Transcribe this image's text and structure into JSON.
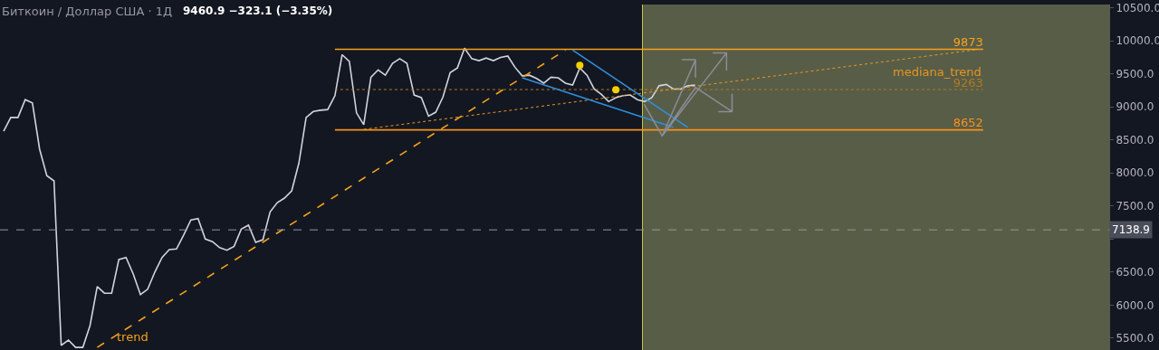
{
  "chart_data": {
    "type": "line",
    "title": "Биткоин / Доллар США · 1Д",
    "subtitle": "9460.9 −323.1 (−3.35%)",
    "categories": [
      null,
      null,
      null,
      null,
      null,
      null,
      null,
      null,
      null,
      null,
      null,
      null,
      null,
      null,
      null,
      null,
      null,
      null,
      null,
      null,
      null,
      null,
      null,
      null,
      null,
      null,
      null,
      null,
      null,
      null,
      null,
      null,
      null,
      null,
      null,
      null,
      null,
      null,
      null,
      null,
      null,
      null,
      null,
      null,
      null,
      null,
      null,
      null,
      null,
      null,
      null,
      null,
      null,
      null,
      null,
      null,
      null,
      null,
      null,
      null,
      null,
      null,
      null,
      null,
      null,
      null,
      null,
      null,
      null,
      null,
      null,
      null,
      null,
      null,
      null,
      null,
      null,
      null,
      null,
      null,
      null,
      null,
      null,
      null,
      null,
      null,
      null,
      null,
      null,
      null,
      null,
      null,
      null,
      null,
      null,
      null,
      null,
      null,
      null,
      null,
      null,
      null,
      null,
      null,
      null,
      null,
      null,
      null,
      null,
      null,
      null,
      null,
      null,
      null,
      null,
      null,
      null,
      null,
      null,
      null,
      null,
      null,
      null,
      null,
      null,
      null,
      null,
      null,
      null,
      null,
      null,
      null,
      null,
      null,
      null,
      null,
      null,
      null,
      null,
      null,
      null,
      null,
      null,
      null,
      null,
      null,
      null,
      null,
      null,
      null,
      null,
      null,
      null,
      null
    ],
    "series": [
      {
        "color": "#d1d4dc",
        "line_style": "solid",
        "values": [
          8630,
          8840,
          8840,
          9110,
          9060,
          8360,
          7960,
          7880,
          5390,
          5470,
          5360,
          5360,
          5690,
          6280,
          6180,
          6180,
          6690,
          6720,
          6470,
          6160,
          6240,
          6500,
          6720,
          6840,
          6850,
          7060,
          7290,
          7310,
          7000,
          6960,
          6870,
          6830,
          6890,
          7150,
          7210,
          6950,
          6990,
          7410,
          7550,
          7620,
          7730,
          8150,
          8840,
          8930,
          8950,
          8960,
          9170,
          9790,
          9690,
          8910,
          8730,
          9450,
          9560,
          9480,
          9660,
          9730,
          9660,
          9180,
          9140,
          8860,
          8920,
          9150,
          9520,
          9590,
          9890,
          9730,
          9700,
          9740,
          9700,
          9750,
          9770,
          9600,
          9470,
          9480,
          9430,
          9360,
          9450,
          9440,
          9360,
          9330,
          9590,
          9480,
          9270,
          9190,
          9080,
          9140,
          9170,
          9180,
          9110,
          9080,
          9140,
          9320,
          9340,
          9270,
          9270,
          9320,
          9330,
          null,
          null,
          null,
          null,
          null,
          null,
          null,
          null,
          null,
          null,
          null,
          null,
          null,
          null,
          null,
          null,
          null,
          null,
          null,
          null,
          null,
          null,
          null,
          null,
          null,
          null,
          null,
          null,
          null,
          null,
          null,
          null,
          null,
          null,
          null,
          null,
          null,
          null,
          null,
          null,
          null,
          null,
          null,
          null,
          null,
          null,
          null,
          null,
          null,
          null,
          null,
          null,
          null,
          null,
          null,
          null,
          null
        ]
      },
      {
        "color": "#f7a21b",
        "line_style": "solid",
        "values": [
          null,
          null,
          null,
          null,
          null,
          null,
          null,
          null,
          null,
          null,
          null,
          null,
          null,
          null,
          null,
          null,
          null,
          null,
          null,
          null,
          null,
          null,
          null,
          null,
          null,
          null,
          null,
          null,
          null,
          null,
          null,
          null,
          null,
          null,
          null,
          null,
          null,
          null,
          null,
          null,
          null,
          null,
          null,
          null,
          null,
          null,
          9873,
          null,
          null,
          null,
          null,
          null,
          null,
          null,
          null,
          null,
          null,
          null,
          null,
          null,
          null,
          null,
          null,
          null,
          null,
          null,
          null,
          null,
          null,
          null,
          null,
          null,
          null,
          null,
          null,
          null,
          null,
          null,
          null,
          null,
          null,
          null,
          null,
          null,
          null,
          null,
          null,
          null,
          null,
          null,
          null,
          null,
          null,
          null,
          null,
          null,
          null,
          null,
          null,
          null,
          null,
          null,
          null,
          null,
          null,
          null,
          null,
          null,
          null,
          null,
          null,
          null,
          null,
          null,
          null,
          null,
          null,
          null,
          null,
          null,
          null,
          null,
          null,
          null,
          null,
          null,
          null,
          null,
          null,
          null,
          null,
          null,
          null,
          null,
          null,
          null,
          9873,
          null,
          null,
          null,
          null,
          null,
          null,
          null,
          null,
          null,
          null,
          null,
          null,
          null,
          null,
          null,
          null,
          null
        ],
        "value_labels": [
          null,
          null,
          null,
          null,
          null,
          null,
          null,
          null,
          null,
          null,
          null,
          null,
          null,
          null,
          null,
          null,
          null,
          null,
          null,
          null,
          null,
          null,
          null,
          null,
          null,
          null,
          null,
          null,
          null,
          null,
          null,
          null,
          null,
          null,
          null,
          null,
          null,
          null,
          null,
          null,
          null,
          null,
          null,
          null,
          null,
          null,
          null,
          null,
          null,
          null,
          null,
          null,
          null,
          null,
          null,
          null,
          null,
          null,
          null,
          null,
          null,
          null,
          null,
          null,
          null,
          null,
          null,
          null,
          null,
          null,
          null,
          null,
          null,
          null,
          null,
          null,
          null,
          null,
          null,
          null,
          null,
          null,
          null,
          null,
          null,
          null,
          null,
          null,
          null,
          null,
          null,
          null,
          null,
          null,
          null,
          null,
          null,
          null,
          null,
          null,
          null,
          null,
          null,
          null,
          null,
          null,
          null,
          null,
          null,
          null,
          null,
          null,
          null,
          null,
          null,
          null,
          null,
          null,
          null,
          null,
          null,
          null,
          null,
          null,
          null,
          null,
          null,
          null,
          null,
          null,
          null,
          null,
          null,
          null,
          null,
          null,
          "9873",
          null,
          null,
          null,
          null,
          null,
          null,
          null,
          null,
          null,
          null,
          null,
          null,
          null,
          null,
          null,
          null,
          null
        ]
      },
      {
        "color": "#b5791c",
        "line_style": "dotted",
        "values": [
          null,
          null,
          null,
          null,
          null,
          null,
          null,
          null,
          null,
          null,
          null,
          null,
          null,
          null,
          null,
          null,
          null,
          null,
          null,
          null,
          null,
          null,
          null,
          null,
          null,
          null,
          null,
          null,
          null,
          null,
          null,
          null,
          null,
          null,
          null,
          null,
          null,
          null,
          null,
          null,
          null,
          null,
          null,
          null,
          null,
          null,
          9263,
          null,
          null,
          null,
          null,
          null,
          null,
          null,
          null,
          null,
          null,
          null,
          null,
          null,
          null,
          null,
          null,
          null,
          null,
          null,
          null,
          null,
          null,
          null,
          null,
          null,
          null,
          null,
          null,
          null,
          null,
          null,
          null,
          null,
          null,
          null,
          null,
          null,
          null,
          null,
          null,
          null,
          null,
          null,
          null,
          null,
          null,
          null,
          null,
          null,
          null,
          null,
          null,
          null,
          null,
          null,
          null,
          null,
          null,
          null,
          null,
          null,
          null,
          null,
          null,
          null,
          null,
          null,
          null,
          null,
          null,
          null,
          null,
          null,
          null,
          null,
          null,
          null,
          null,
          null,
          null,
          null,
          null,
          null,
          null,
          null,
          null,
          null,
          null,
          null,
          9263,
          null,
          null,
          null,
          null,
          null,
          null,
          null,
          null,
          null,
          null,
          null,
          null,
          null,
          null,
          null,
          null,
          null
        ],
        "value_labels": [
          null,
          null,
          null,
          null,
          null,
          null,
          null,
          null,
          null,
          null,
          null,
          null,
          null,
          null,
          null,
          null,
          null,
          null,
          null,
          null,
          null,
          null,
          null,
          null,
          null,
          null,
          null,
          null,
          null,
          null,
          null,
          null,
          null,
          null,
          null,
          null,
          null,
          null,
          null,
          null,
          null,
          null,
          null,
          null,
          null,
          null,
          null,
          null,
          null,
          null,
          null,
          null,
          null,
          null,
          null,
          null,
          null,
          null,
          null,
          null,
          null,
          null,
          null,
          null,
          null,
          null,
          null,
          null,
          null,
          null,
          null,
          null,
          null,
          null,
          null,
          null,
          null,
          null,
          null,
          null,
          null,
          null,
          null,
          null,
          null,
          null,
          null,
          null,
          null,
          null,
          null,
          null,
          null,
          null,
          null,
          null,
          null,
          null,
          null,
          null,
          null,
          null,
          null,
          null,
          null,
          null,
          null,
          null,
          null,
          null,
          null,
          null,
          null,
          null,
          null,
          null,
          null,
          null,
          null,
          null,
          null,
          null,
          null,
          null,
          null,
          null,
          null,
          null,
          null,
          null,
          null,
          null,
          null,
          null,
          null,
          null,
          "9263",
          null,
          null,
          null,
          null,
          null,
          null,
          null,
          null,
          null,
          null,
          null,
          null,
          null,
          null,
          null,
          null,
          null
        ]
      },
      {
        "color": "#f7931a",
        "line_style": "solid",
        "values": [
          null,
          null,
          null,
          null,
          null,
          null,
          null,
          null,
          null,
          null,
          null,
          null,
          null,
          null,
          null,
          null,
          null,
          null,
          null,
          null,
          null,
          null,
          null,
          null,
          null,
          null,
          null,
          null,
          null,
          null,
          null,
          null,
          null,
          null,
          null,
          null,
          null,
          null,
          null,
          null,
          null,
          null,
          null,
          null,
          null,
          null,
          8652,
          null,
          null,
          null,
          null,
          null,
          null,
          null,
          null,
          null,
          null,
          null,
          null,
          null,
          null,
          null,
          null,
          null,
          null,
          null,
          null,
          null,
          null,
          null,
          null,
          null,
          null,
          null,
          null,
          null,
          null,
          null,
          null,
          null,
          null,
          null,
          null,
          null,
          null,
          null,
          null,
          null,
          null,
          null,
          null,
          null,
          null,
          null,
          null,
          null,
          null,
          null,
          null,
          null,
          null,
          null,
          null,
          null,
          null,
          null,
          null,
          null,
          null,
          null,
          null,
          null,
          null,
          null,
          null,
          null,
          null,
          null,
          null,
          null,
          null,
          null,
          null,
          null,
          null,
          null,
          null,
          null,
          null,
          null,
          null,
          null,
          null,
          null,
          null,
          null,
          8652,
          null,
          null,
          null,
          null,
          null,
          null,
          null,
          null,
          null,
          null,
          null,
          null,
          null,
          null,
          null,
          null,
          null
        ],
        "value_labels": [
          null,
          null,
          null,
          null,
          null,
          null,
          null,
          null,
          null,
          null,
          null,
          null,
          null,
          null,
          null,
          null,
          null,
          null,
          null,
          null,
          null,
          null,
          null,
          null,
          null,
          null,
          null,
          null,
          null,
          null,
          null,
          null,
          null,
          null,
          null,
          null,
          null,
          null,
          null,
          null,
          null,
          null,
          null,
          null,
          null,
          null,
          null,
          null,
          null,
          null,
          null,
          null,
          null,
          null,
          null,
          null,
          null,
          null,
          null,
          null,
          null,
          null,
          null,
          null,
          null,
          null,
          null,
          null,
          null,
          null,
          null,
          null,
          null,
          null,
          null,
          null,
          null,
          null,
          null,
          null,
          null,
          null,
          null,
          null,
          null,
          null,
          null,
          null,
          null,
          null,
          null,
          null,
          null,
          null,
          null,
          null,
          null,
          null,
          null,
          null,
          null,
          null,
          null,
          null,
          null,
          null,
          null,
          null,
          null,
          null,
          null,
          null,
          null,
          null,
          null,
          null,
          null,
          null,
          null,
          null,
          null,
          null,
          null,
          null,
          null,
          null,
          null,
          null,
          null,
          null,
          null,
          null,
          null,
          null,
          null,
          null,
          "8652",
          null,
          null,
          null,
          null,
          null,
          null,
          null,
          null,
          null,
          null,
          null,
          null,
          null,
          null,
          null,
          null,
          null
        ]
      },
      {
        "name": "trend",
        "color": "#f7a21b",
        "line_style": "dashed",
        "values": [
          null,
          null,
          null,
          null,
          null,
          null,
          null,
          null,
          null,
          null,
          null,
          null,
          null,
          5360,
          null,
          null,
          null,
          null,
          null,
          null,
          null,
          null,
          null,
          null,
          null,
          null,
          null,
          null,
          null,
          null,
          null,
          null,
          null,
          null,
          null,
          null,
          null,
          null,
          null,
          null,
          null,
          null,
          null,
          null,
          null,
          null,
          null,
          null,
          null,
          null,
          null,
          null,
          null,
          null,
          null,
          null,
          null,
          null,
          null,
          null,
          null,
          null,
          null,
          null,
          null,
          null,
          null,
          null,
          null,
          null,
          null,
          null,
          null,
          null,
          null,
          null,
          null,
          null,
          9860,
          null,
          null,
          null,
          null,
          null,
          null,
          null,
          null,
          null,
          null,
          null,
          null,
          null,
          null,
          null,
          null,
          null,
          null,
          null,
          null,
          null,
          null,
          null,
          null,
          null,
          null,
          null,
          null,
          null,
          null,
          null,
          null,
          null,
          null,
          null,
          null,
          null,
          null,
          null,
          null,
          null,
          null,
          null,
          null,
          null,
          null,
          null,
          null,
          null,
          null,
          null,
          null,
          null,
          null,
          null,
          null,
          null,
          null,
          null,
          null,
          null,
          null,
          null,
          null,
          null,
          null,
          null,
          null,
          null,
          null,
          null,
          null,
          null,
          null,
          null
        ]
      },
      {
        "name": "mediana_trend",
        "color": "#e8961e",
        "line_style": "dotted",
        "values": [
          null,
          null,
          null,
          null,
          null,
          null,
          null,
          null,
          null,
          null,
          null,
          null,
          null,
          null,
          null,
          null,
          null,
          null,
          null,
          null,
          null,
          null,
          null,
          null,
          null,
          null,
          null,
          null,
          null,
          null,
          null,
          null,
          null,
          null,
          null,
          null,
          null,
          null,
          null,
          null,
          null,
          null,
          null,
          null,
          null,
          null,
          null,
          null,
          null,
          null,
          8660,
          null,
          null,
          null,
          null,
          null,
          null,
          null,
          null,
          null,
          null,
          null,
          null,
          null,
          null,
          null,
          null,
          null,
          null,
          null,
          null,
          null,
          null,
          null,
          null,
          null,
          null,
          null,
          null,
          null,
          null,
          null,
          null,
          null,
          null,
          null,
          null,
          null,
          null,
          null,
          null,
          null,
          null,
          null,
          null,
          null,
          null,
          null,
          null,
          null,
          null,
          null,
          null,
          null,
          null,
          null,
          null,
          null,
          null,
          null,
          null,
          null,
          null,
          null,
          null,
          null,
          null,
          null,
          null,
          null,
          null,
          null,
          null,
          null,
          null,
          null,
          null,
          null,
          null,
          null,
          null,
          null,
          null,
          null,
          null,
          null,
          9880,
          null,
          null,
          null,
          null,
          null,
          null,
          null,
          null,
          null,
          null,
          null,
          null,
          null,
          null,
          null,
          null,
          null
        ]
      },
      {
        "color": "#2f8fdd",
        "line_style": "solid",
        "values": [
          null,
          null,
          null,
          null,
          null,
          null,
          null,
          null,
          null,
          null,
          null,
          null,
          null,
          null,
          null,
          null,
          null,
          null,
          null,
          null,
          null,
          null,
          null,
          null,
          null,
          null,
          null,
          null,
          null,
          null,
          null,
          null,
          null,
          null,
          null,
          null,
          null,
          null,
          null,
          null,
          null,
          null,
          null,
          null,
          null,
          null,
          null,
          null,
          null,
          null,
          null,
          null,
          null,
          null,
          null,
          null,
          null,
          null,
          null,
          null,
          null,
          null,
          null,
          null,
          null,
          null,
          null,
          null,
          null,
          null,
          null,
          null,
          null,
          null,
          null,
          null,
          null,
          null,
          null,
          9860,
          null,
          null,
          null,
          null,
          null,
          null,
          null,
          null,
          null,
          null,
          null,
          null,
          null,
          null,
          null,
          8690,
          null,
          null,
          null,
          null,
          null,
          null,
          null,
          null,
          null,
          null,
          null,
          null,
          null,
          null,
          null,
          null,
          null,
          null,
          null,
          null,
          null,
          null,
          null,
          null,
          null,
          null,
          null,
          null,
          null,
          null,
          null,
          null,
          null,
          null,
          null,
          null,
          null,
          null,
          null,
          null,
          null,
          null,
          null,
          null,
          null,
          null,
          null,
          null,
          null,
          null,
          null,
          null,
          null,
          null,
          null,
          null,
          null,
          null
        ]
      },
      {
        "color": "#2f8fdd",
        "line_style": "solid",
        "values": [
          null,
          null,
          null,
          null,
          null,
          null,
          null,
          null,
          null,
          null,
          null,
          null,
          null,
          null,
          null,
          null,
          null,
          null,
          null,
          null,
          null,
          null,
          null,
          null,
          null,
          null,
          null,
          null,
          null,
          null,
          null,
          null,
          null,
          null,
          null,
          null,
          null,
          null,
          null,
          null,
          null,
          null,
          null,
          null,
          null,
          null,
          null,
          null,
          null,
          null,
          null,
          null,
          null,
          null,
          null,
          null,
          null,
          null,
          null,
          null,
          null,
          null,
          null,
          null,
          null,
          null,
          null,
          null,
          null,
          null,
          null,
          null,
          9440,
          null,
          null,
          null,
          null,
          null,
          null,
          null,
          null,
          null,
          null,
          null,
          null,
          null,
          null,
          null,
          null,
          null,
          null,
          null,
          null,
          8690,
          null,
          null,
          null,
          null,
          null,
          null,
          null,
          null,
          null,
          null,
          null,
          null,
          null,
          null,
          null,
          null,
          null,
          null,
          null,
          null,
          null,
          null,
          null,
          null,
          null,
          null,
          null,
          null,
          null,
          null,
          null,
          null,
          null,
          null,
          null,
          null,
          null,
          null,
          null,
          null,
          null,
          null,
          null,
          null,
          null,
          null,
          null,
          null,
          null,
          null,
          null,
          null,
          null,
          null,
          null,
          null,
          null,
          null,
          null,
          null
        ]
      },
      {
        "type": "scatter",
        "color": "#f5d000",
        "marker": "circle",
        "values": [
          null,
          null,
          null,
          null,
          null,
          null,
          null,
          null,
          null,
          null,
          null,
          null,
          null,
          null,
          null,
          null,
          null,
          null,
          null,
          null,
          null,
          null,
          null,
          null,
          null,
          null,
          null,
          null,
          null,
          null,
          null,
          null,
          null,
          null,
          null,
          null,
          null,
          null,
          null,
          null,
          null,
          null,
          null,
          null,
          null,
          null,
          null,
          null,
          null,
          null,
          null,
          null,
          null,
          null,
          null,
          null,
          null,
          null,
          null,
          null,
          null,
          null,
          null,
          null,
          null,
          null,
          null,
          null,
          null,
          null,
          null,
          null,
          null,
          null,
          null,
          null,
          null,
          null,
          null,
          null,
          9630,
          null,
          null,
          null,
          null,
          9260,
          null,
          null,
          null,
          null,
          null,
          null,
          null,
          null,
          null,
          null,
          null,
          null,
          null,
          null,
          null,
          null,
          null,
          null,
          null,
          null,
          null,
          null,
          null,
          null,
          null,
          null,
          null,
          null,
          null,
          null,
          null,
          null,
          null,
          null,
          null,
          null,
          null,
          null,
          null,
          null,
          null,
          null,
          null,
          null,
          null,
          null,
          null,
          null,
          null,
          null,
          null,
          null,
          null,
          null,
          null,
          null,
          null,
          null,
          null,
          null,
          null,
          null,
          null,
          null,
          null,
          null,
          null,
          null
        ]
      }
    ],
    "ylim": [
      5320,
      10550
    ],
    "yticks": [
      {
        "value": 5500,
        "label": "5500.0"
      },
      {
        "value": 6000,
        "label": "6000.0"
      },
      {
        "value": 6500,
        "label": "6500.0"
      },
      {
        "value": 7000,
        "label": null
      },
      {
        "value": 7500,
        "label": "7500.0"
      },
      {
        "value": 8000,
        "label": "8000.0"
      },
      {
        "value": 8500,
        "label": "8500.0"
      },
      {
        "value": 9000,
        "label": "9000.0"
      },
      {
        "value": 9500,
        "label": "9500.0"
      },
      {
        "value": 10000,
        "label": "10000.0"
      },
      {
        "value": 10500,
        "label": "10500.0"
      }
    ],
    "ref_lines": [
      {
        "axis": "y",
        "value": 7138.9,
        "label": "7138.9",
        "color": "#9598a1",
        "line_style": "dashed"
      }
    ],
    "tick_labels": "y",
    "grid": false,
    "legend": false
  }
}
